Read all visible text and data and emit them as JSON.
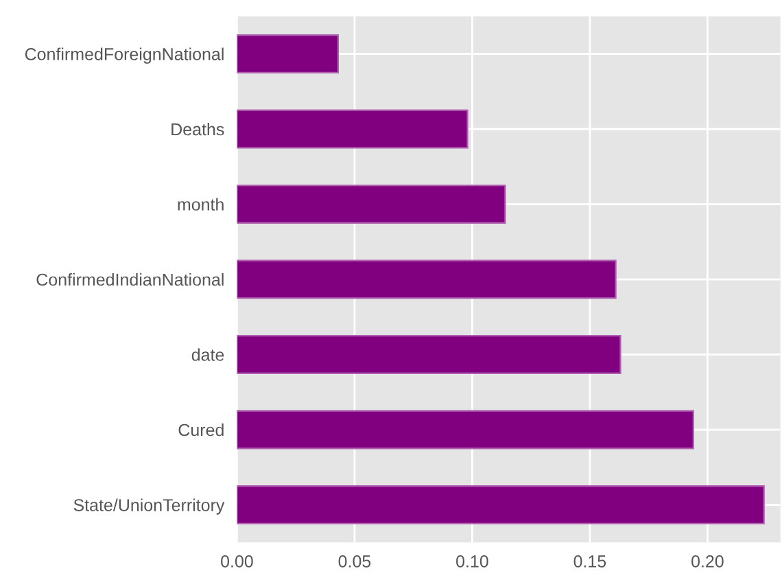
{
  "chart_data": {
    "type": "bar",
    "orientation": "horizontal",
    "categories": [
      "ConfirmedForeignNational",
      "Deaths",
      "month",
      "ConfirmedIndianNational",
      "date",
      "Cured",
      "State/UnionTerritory"
    ],
    "values": [
      0.043,
      0.098,
      0.114,
      0.161,
      0.163,
      0.194,
      0.224
    ],
    "color": "#800080",
    "xlim": [
      0,
      0.231
    ],
    "xticks": [
      {
        "value": 0,
        "label": "0.00"
      },
      {
        "value": 0.05,
        "label": "0.05"
      },
      {
        "value": 0.1,
        "label": "0.10"
      },
      {
        "value": 0.15,
        "label": "0.15"
      },
      {
        "value": 0.2,
        "label": "0.20"
      }
    ],
    "grid": true
  }
}
